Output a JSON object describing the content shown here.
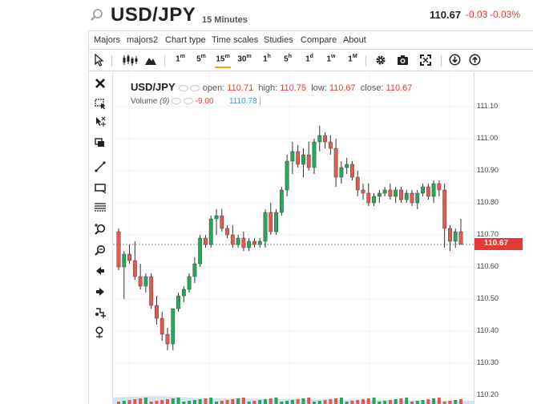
{
  "header": {
    "symbol": "USD/JPY",
    "interval": "15 Minutes",
    "last_price": "110.67",
    "change": "-0.03",
    "change_pct": "-0.03%"
  },
  "menu": [
    "Majors",
    "majors2",
    "Chart type",
    "Time scales",
    "Studies",
    "Compare",
    "About"
  ],
  "toolbar": {
    "timeframes": [
      {
        "num": "1",
        "unit": "m"
      },
      {
        "num": "5",
        "unit": "m"
      },
      {
        "num": "15",
        "unit": "m"
      },
      {
        "num": "30",
        "unit": "m"
      },
      {
        "num": "1",
        "unit": "h"
      },
      {
        "num": "5",
        "unit": "h"
      },
      {
        "num": "1",
        "unit": "d"
      },
      {
        "num": "1",
        "unit": "w"
      },
      {
        "num": "1",
        "unit": "M"
      }
    ],
    "active_timeframe": "15m"
  },
  "legend": {
    "symbol": "USD/JPY",
    "open_label": "open:",
    "open": "110.71",
    "high_label": "high:",
    "high": "110.75",
    "low_label": "low:",
    "low": "110.67",
    "close_label": "close:",
    "close": "110.67",
    "volume_label": "Volume",
    "volume_period": "(9)",
    "volume_value": "-9.00",
    "volume_ma": "1110.78"
  },
  "colors": {
    "up": "#26a65b",
    "down": "#e05a4f",
    "accent": "#f5a623",
    "price_tag": "#e53935"
  },
  "chart_data": {
    "type": "candlestick",
    "y_ticks": [
      "111.10",
      "111.00",
      "110.90",
      "110.80",
      "110.70",
      "110.60",
      "110.50",
      "110.40",
      "110.30",
      "110.20"
    ],
    "ylim": [
      110.2,
      111.12
    ],
    "current_price": "110.67",
    "ohlc": [
      [
        110.71,
        110.72,
        110.59,
        110.6
      ],
      [
        110.6,
        110.65,
        110.5,
        110.64
      ],
      [
        110.64,
        110.67,
        110.61,
        110.62
      ],
      [
        110.62,
        110.68,
        110.56,
        110.57
      ],
      [
        110.57,
        110.61,
        110.53,
        110.54
      ],
      [
        110.54,
        110.58,
        110.52,
        110.57
      ],
      [
        110.57,
        110.58,
        110.47,
        110.48
      ],
      [
        110.48,
        110.51,
        110.42,
        110.44
      ],
      [
        110.44,
        110.46,
        110.37,
        110.39
      ],
      [
        110.39,
        110.41,
        110.34,
        110.36
      ],
      [
        110.36,
        110.47,
        110.34,
        110.47
      ],
      [
        110.47,
        110.52,
        110.46,
        110.51
      ],
      [
        110.51,
        110.54,
        110.49,
        110.53
      ],
      [
        110.53,
        110.58,
        110.52,
        110.57
      ],
      [
        110.57,
        110.63,
        110.55,
        110.61
      ],
      [
        110.61,
        110.7,
        110.6,
        110.69
      ],
      [
        110.69,
        110.7,
        110.66,
        110.67
      ],
      [
        110.67,
        110.76,
        110.66,
        110.75
      ],
      [
        110.75,
        110.78,
        110.7,
        110.76
      ],
      [
        110.76,
        110.78,
        110.71,
        110.72
      ],
      [
        110.72,
        110.73,
        110.69,
        110.7
      ],
      [
        110.7,
        110.73,
        110.66,
        110.67
      ],
      [
        110.67,
        110.7,
        110.66,
        110.69
      ],
      [
        110.69,
        110.71,
        110.65,
        110.66
      ],
      [
        110.66,
        110.69,
        110.65,
        110.68
      ],
      [
        110.68,
        110.69,
        110.66,
        110.67
      ],
      [
        110.67,
        110.69,
        110.66,
        110.68
      ],
      [
        110.68,
        110.78,
        110.66,
        110.77
      ],
      [
        110.77,
        110.8,
        110.7,
        110.71
      ],
      [
        110.71,
        110.78,
        110.7,
        110.77
      ],
      [
        110.77,
        110.85,
        110.76,
        110.84
      ],
      [
        110.84,
        110.95,
        110.82,
        110.93
      ],
      [
        110.93,
        110.99,
        110.89,
        110.96
      ],
      [
        110.96,
        110.98,
        110.91,
        110.92
      ],
      [
        110.92,
        110.97,
        110.88,
        110.95
      ],
      [
        110.95,
        110.99,
        110.9,
        110.91
      ],
      [
        110.91,
        111.0,
        110.89,
        110.99
      ],
      [
        110.99,
        111.04,
        110.96,
        111.01
      ],
      [
        111.01,
        111.02,
        110.97,
        110.99
      ],
      [
        110.99,
        111.01,
        110.95,
        110.97
      ],
      [
        110.97,
        111.0,
        110.85,
        110.88
      ],
      [
        110.88,
        110.93,
        110.86,
        110.91
      ],
      [
        110.91,
        110.94,
        110.89,
        110.92
      ],
      [
        110.92,
        110.93,
        110.87,
        110.88
      ],
      [
        110.88,
        110.9,
        110.82,
        110.84
      ],
      [
        110.84,
        110.86,
        110.81,
        110.83
      ],
      [
        110.83,
        110.86,
        110.79,
        110.8
      ],
      [
        110.8,
        110.83,
        110.79,
        110.82
      ],
      [
        110.82,
        110.84,
        110.8,
        110.83
      ],
      [
        110.83,
        110.85,
        110.82,
        110.84
      ],
      [
        110.84,
        110.86,
        110.81,
        110.82
      ],
      [
        110.82,
        110.85,
        110.8,
        110.84
      ],
      [
        110.84,
        110.85,
        110.8,
        110.81
      ],
      [
        110.81,
        110.84,
        110.8,
        110.83
      ],
      [
        110.83,
        110.84,
        110.79,
        110.8
      ],
      [
        110.8,
        110.84,
        110.78,
        110.83
      ],
      [
        110.83,
        110.86,
        110.82,
        110.85
      ],
      [
        110.85,
        110.86,
        110.81,
        110.82
      ],
      [
        110.82,
        110.87,
        110.8,
        110.86
      ],
      [
        110.86,
        110.87,
        110.82,
        110.84
      ],
      [
        110.84,
        110.86,
        110.66,
        110.72
      ],
      [
        110.72,
        110.73,
        110.65,
        110.68
      ],
      [
        110.68,
        110.72,
        110.66,
        110.71
      ],
      [
        110.71,
        110.75,
        110.67,
        110.67
      ]
    ]
  }
}
